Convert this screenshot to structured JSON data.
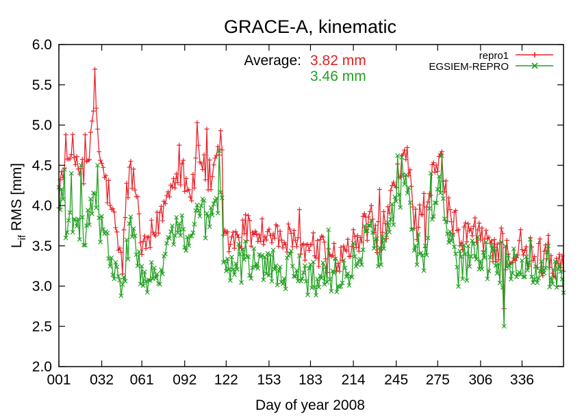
{
  "chart_data": {
    "type": "line",
    "title": "GRACE-A, kinematic",
    "xlabel": "Day of year 2008",
    "ylabel_main": "L",
    "ylabel_sub": "if",
    "ylabel_rest": " RMS [mm]",
    "xlim": [
      1,
      366
    ],
    "ylim": [
      2.0,
      6.0
    ],
    "xticks": [
      1,
      32,
      61,
      92,
      122,
      153,
      183,
      214,
      245,
      275,
      306,
      336
    ],
    "xtick_labels": [
      "001",
      "032",
      "061",
      "092",
      "122",
      "153",
      "183",
      "214",
      "245",
      "275",
      "306",
      "336"
    ],
    "yticks": [
      2.0,
      2.5,
      3.0,
      3.5,
      4.0,
      4.5,
      5.0,
      5.5,
      6.0
    ],
    "ytick_labels": [
      "2.0",
      "2.5",
      "3.0",
      "3.5",
      "4.0",
      "4.5",
      "5.0",
      "5.5",
      "6.0"
    ],
    "grid": false,
    "legend_position": "top-right",
    "annotation": {
      "label": "Average:",
      "values": [
        "3.82 mm",
        "3.46 mm"
      ],
      "colors": [
        "#e02020",
        "#20a020"
      ]
    },
    "series": [
      {
        "name": "repro1",
        "color": "#e8232a",
        "marker": "plus",
        "anchors": [
          [
            1,
            4.25
          ],
          [
            6,
            4.4
          ],
          [
            11,
            4.65
          ],
          [
            16,
            4.55
          ],
          [
            21,
            4.35
          ],
          [
            25,
            4.8
          ],
          [
            27,
            5.62
          ],
          [
            30,
            4.6
          ],
          [
            35,
            4.3
          ],
          [
            40,
            3.85
          ],
          [
            44,
            3.45
          ],
          [
            47,
            3.3
          ],
          [
            50,
            4.2
          ],
          [
            53,
            4.4
          ],
          [
            57,
            4.2
          ],
          [
            60,
            3.55
          ],
          [
            63,
            3.45
          ],
          [
            66,
            3.5
          ],
          [
            70,
            3.65
          ],
          [
            74,
            3.85
          ],
          [
            78,
            4.05
          ],
          [
            82,
            4.3
          ],
          [
            86,
            4.45
          ],
          [
            90,
            4.5
          ],
          [
            94,
            4.3
          ],
          [
            97,
            4.15
          ],
          [
            100,
            4.45
          ],
          [
            104,
            4.6
          ],
          [
            108,
            4.35
          ],
          [
            112,
            4.3
          ],
          [
            116,
            4.55
          ],
          [
            119,
            4.6
          ],
          [
            120,
            3.6
          ],
          [
            124,
            3.55
          ],
          [
            130,
            3.6
          ],
          [
            136,
            3.7
          ],
          [
            142,
            3.7
          ],
          [
            150,
            3.65
          ],
          [
            160,
            3.6
          ],
          [
            170,
            3.5
          ],
          [
            180,
            3.45
          ],
          [
            190,
            3.45
          ],
          [
            198,
            3.35
          ],
          [
            204,
            3.3
          ],
          [
            210,
            3.4
          ],
          [
            214,
            3.5
          ],
          [
            220,
            3.65
          ],
          [
            225,
            3.75
          ],
          [
            230,
            3.7
          ],
          [
            235,
            3.6
          ],
          [
            240,
            3.95
          ],
          [
            245,
            4.3
          ],
          [
            248,
            4.35
          ],
          [
            252,
            4.6
          ],
          [
            255,
            4.45
          ],
          [
            258,
            3.85
          ],
          [
            262,
            3.8
          ],
          [
            266,
            3.65
          ],
          [
            270,
            4.3
          ],
          [
            274,
            4.35
          ],
          [
            277,
            4.55
          ],
          [
            280,
            4.2
          ],
          [
            285,
            3.8
          ],
          [
            290,
            3.6
          ],
          [
            296,
            3.65
          ],
          [
            300,
            3.7
          ],
          [
            305,
            3.6
          ],
          [
            310,
            3.55
          ],
          [
            316,
            3.5
          ],
          [
            322,
            3.45
          ],
          [
            328,
            3.4
          ],
          [
            334,
            3.35
          ],
          [
            340,
            3.35
          ],
          [
            346,
            3.35
          ],
          [
            352,
            3.35
          ],
          [
            358,
            3.3
          ],
          [
            364,
            3.35
          ]
        ],
        "spikes": [
          [
            6,
            4.88
          ],
          [
            20,
            4.88
          ],
          [
            25,
            5.05
          ],
          [
            88,
            4.75
          ],
          [
            101,
            5.03
          ],
          [
            108,
            4.95
          ],
          [
            118,
            4.93
          ],
          [
            175,
            3.95
          ],
          [
            222,
            3.9
          ],
          [
            227,
            4.0
          ],
          [
            233,
            4.2
          ],
          [
            249,
            4.62
          ],
          [
            253,
            4.72
          ],
          [
            265,
            4.15
          ],
          [
            278,
            4.67
          ],
          [
            321,
            3.72
          ],
          [
            323,
            2.72
          ],
          [
            335,
            3.7
          ],
          [
            342,
            3.6
          ],
          [
            355,
            3.63
          ]
        ]
      },
      {
        "name": "EGSIEM-REPRO",
        "color": "#22a022",
        "marker": "x",
        "anchors": [
          [
            1,
            4.2
          ],
          [
            6,
            3.85
          ],
          [
            11,
            3.6
          ],
          [
            16,
            3.75
          ],
          [
            21,
            3.7
          ],
          [
            25,
            4.0
          ],
          [
            28,
            4.1
          ],
          [
            31,
            3.7
          ],
          [
            35,
            3.55
          ],
          [
            40,
            3.2
          ],
          [
            44,
            3.05
          ],
          [
            47,
            2.97
          ],
          [
            50,
            3.45
          ],
          [
            53,
            3.65
          ],
          [
            57,
            3.55
          ],
          [
            60,
            3.05
          ],
          [
            63,
            3.05
          ],
          [
            66,
            3.05
          ],
          [
            70,
            3.0
          ],
          [
            74,
            3.2
          ],
          [
            78,
            3.45
          ],
          [
            82,
            3.65
          ],
          [
            86,
            3.7
          ],
          [
            90,
            3.75
          ],
          [
            94,
            3.5
          ],
          [
            97,
            3.55
          ],
          [
            100,
            3.8
          ],
          [
            104,
            3.9
          ],
          [
            108,
            3.8
          ],
          [
            112,
            3.8
          ],
          [
            116,
            4.1
          ],
          [
            119,
            4.1
          ],
          [
            120,
            3.3
          ],
          [
            124,
            3.2
          ],
          [
            130,
            3.25
          ],
          [
            136,
            3.3
          ],
          [
            142,
            3.25
          ],
          [
            150,
            3.25
          ],
          [
            160,
            3.2
          ],
          [
            170,
            3.2
          ],
          [
            180,
            3.15
          ],
          [
            190,
            3.1
          ],
          [
            198,
            3.1
          ],
          [
            204,
            3.1
          ],
          [
            210,
            3.15
          ],
          [
            214,
            3.3
          ],
          [
            220,
            3.5
          ],
          [
            225,
            3.6
          ],
          [
            230,
            3.55
          ],
          [
            235,
            3.5
          ],
          [
            240,
            3.75
          ],
          [
            245,
            4.0
          ],
          [
            248,
            4.15
          ],
          [
            252,
            4.3
          ],
          [
            255,
            4.05
          ],
          [
            258,
            3.5
          ],
          [
            262,
            3.4
          ],
          [
            266,
            3.35
          ],
          [
            270,
            3.95
          ],
          [
            274,
            3.95
          ],
          [
            277,
            4.25
          ],
          [
            280,
            3.85
          ],
          [
            285,
            3.45
          ],
          [
            290,
            3.2
          ],
          [
            296,
            3.3
          ],
          [
            300,
            3.4
          ],
          [
            305,
            3.35
          ],
          [
            310,
            3.3
          ],
          [
            316,
            3.3
          ],
          [
            322,
            3.25
          ],
          [
            328,
            3.2
          ],
          [
            334,
            3.15
          ],
          [
            340,
            3.15
          ],
          [
            346,
            3.2
          ],
          [
            352,
            3.2
          ],
          [
            358,
            3.15
          ],
          [
            364,
            3.15
          ]
        ],
        "spikes": [
          [
            5,
            4.45
          ],
          [
            10,
            4.4
          ],
          [
            17,
            4.5
          ],
          [
            29,
            4.5
          ],
          [
            46,
            2.88
          ],
          [
            117,
            4.68
          ],
          [
            196,
            3.7
          ],
          [
            226,
            3.75
          ],
          [
            246,
            4.62
          ],
          [
            249,
            4.6
          ],
          [
            270,
            4.4
          ],
          [
            278,
            4.62
          ],
          [
            321,
            3.55
          ],
          [
            323,
            2.5
          ],
          [
            342,
            3.58
          ],
          [
            355,
            3.5
          ]
        ]
      }
    ]
  }
}
